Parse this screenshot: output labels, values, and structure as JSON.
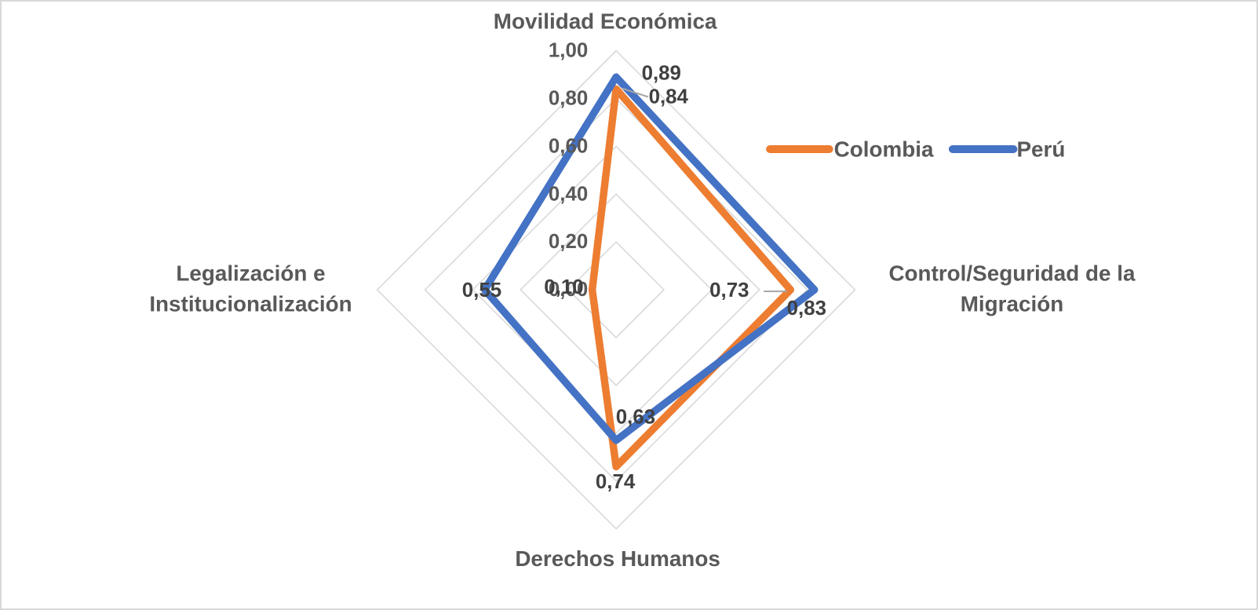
{
  "chart_data": {
    "type": "radar",
    "title": "",
    "categories": [
      {
        "id": "movilidad",
        "label_lines": [
          "Movilidad Económica"
        ]
      },
      {
        "id": "control",
        "label_lines": [
          "Control/Seguridad de la",
          "Migración"
        ]
      },
      {
        "id": "derechos",
        "label_lines": [
          "Derechos Humanos"
        ]
      },
      {
        "id": "legalizacion",
        "label_lines": [
          "Legalización e",
          "Institucionalización"
        ]
      }
    ],
    "series": [
      {
        "name": "Colombia",
        "color": "#ED7D31",
        "values": [
          0.84,
          0.73,
          0.74,
          0.1
        ],
        "data_labels": [
          "0,84",
          "0,73",
          "0,74",
          "0,10"
        ]
      },
      {
        "name": "Perú",
        "color": "#4472C4",
        "values": [
          0.89,
          0.83,
          0.63,
          0.55
        ],
        "data_labels": [
          "0,89",
          "0,83",
          "0,63",
          "0,55"
        ]
      }
    ],
    "radial_axis": {
      "min": 0,
      "max": 1,
      "step": 0.2,
      "tick_labels": [
        "0,00",
        "0,20",
        "0,40",
        "0,60",
        "0,80",
        "1,00"
      ]
    },
    "grid": {
      "rings": 5,
      "color": "#D9D9D9"
    },
    "leader_line_color": "#A6A6A6",
    "legend": {
      "position": "top-right",
      "entries": [
        "Colombia",
        "Perú"
      ]
    }
  }
}
